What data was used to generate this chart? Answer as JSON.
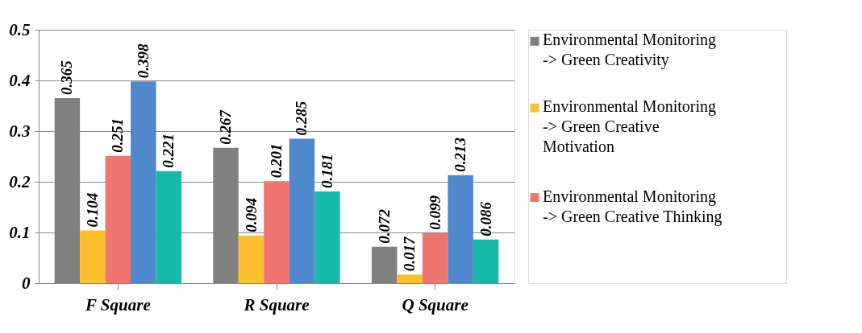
{
  "chart_data": {
    "type": "bar",
    "categories": [
      "F Square",
      "R Square",
      "Q Square"
    ],
    "series": [
      {
        "name": "Environmental Monitoring -> Green Creativity",
        "color": "#808080",
        "values": [
          0.365,
          0.267,
          0.072
        ]
      },
      {
        "name": "Environmental Monitoring -> Green Creative Motivation",
        "color": "#fdbf2d",
        "values": [
          0.104,
          0.094,
          0.017
        ]
      },
      {
        "name": "Environmental Monitoring -> Green Creative Thinking",
        "color": "#f07470",
        "values": [
          0.251,
          0.201,
          0.099
        ]
      },
      {
        "color": "#4f88cc",
        "values": [
          0.398,
          0.285,
          0.213
        ]
      },
      {
        "color": "#17b9a9",
        "values": [
          0.221,
          0.181,
          0.086
        ]
      }
    ],
    "ylim": [
      0,
      0.5
    ],
    "yticks": [
      0,
      0.1,
      0.2,
      0.3,
      0.4,
      0.5
    ],
    "grid": "y",
    "data_labels": true,
    "legend": "right"
  }
}
